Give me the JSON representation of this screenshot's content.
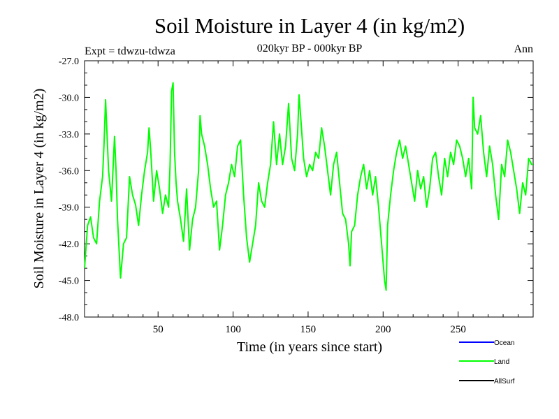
{
  "chart_data": {
    "type": "line",
    "title": "Soil Moisture in Layer 4 (in kg/m2)",
    "subtitle": "020kyr BP - 000kyr BP",
    "experiment_label": "Expt = tdwzu-tdwza",
    "season_label": "Ann",
    "xlabel": "Time (in years since start)",
    "ylabel": "Soil Moisture in Layer 4 (in kg/m2)",
    "xlim": [
      1,
      300
    ],
    "ylim": [
      -48,
      -27
    ],
    "x_ticks": [
      50,
      100,
      150,
      200,
      250
    ],
    "x_tick_labels": [
      "50",
      "100",
      "150",
      "200",
      "250"
    ],
    "y_ticks": [
      -27,
      -30,
      -33,
      -36,
      -39,
      -42,
      -45,
      -48
    ],
    "y_tick_labels": [
      "-27.0",
      "-30.0",
      "-33.0",
      "-36.0",
      "-39.0",
      "-42.0",
      "-45.0",
      "-48.0"
    ],
    "grid": false,
    "legend_position": "bottom-right",
    "legend": [
      {
        "name": "Ocean",
        "color": "#0000ff"
      },
      {
        "name": "Land",
        "color": "#00ff00"
      },
      {
        "name": "AllSurf",
        "color": "#000000"
      }
    ],
    "series": [
      {
        "name": "Land",
        "color": "#00ff00",
        "x": [
          1,
          3,
          5,
          7,
          9,
          11,
          13,
          14,
          15,
          17,
          19,
          21,
          22,
          23,
          25,
          27,
          29,
          31,
          33,
          35,
          37,
          39,
          41,
          43,
          44,
          45,
          47,
          49,
          51,
          53,
          55,
          57,
          58,
          59,
          60,
          61,
          62,
          63,
          65,
          67,
          69,
          71,
          73,
          75,
          77,
          78,
          79,
          81,
          83,
          85,
          87,
          89,
          91,
          93,
          95,
          97,
          99,
          101,
          103,
          105,
          107,
          109,
          111,
          113,
          115,
          117,
          119,
          121,
          123,
          125,
          127,
          129,
          131,
          133,
          135,
          137,
          139,
          141,
          143,
          144,
          145,
          147,
          149,
          151,
          153,
          155,
          157,
          159,
          161,
          163,
          165,
          167,
          169,
          171,
          173,
          175,
          177,
          178,
          179,
          181,
          183,
          185,
          187,
          189,
          191,
          193,
          195,
          197,
          199,
          201,
          202,
          203,
          205,
          207,
          209,
          211,
          213,
          215,
          217,
          219,
          221,
          223,
          225,
          227,
          229,
          231,
          233,
          235,
          237,
          239,
          241,
          243,
          245,
          247,
          249,
          251,
          253,
          255,
          257,
          259,
          260,
          261,
          263,
          265,
          267,
          269,
          271,
          273,
          275,
          277,
          279,
          281,
          283,
          285,
          287,
          289,
          291,
          293,
          295,
          297,
          299,
          300
        ],
        "values": [
          -44.0,
          -40.5,
          -39.8,
          -41.5,
          -42.0,
          -38.5,
          -36.5,
          -33.8,
          -30.2,
          -36.0,
          -38.5,
          -33.2,
          -36.0,
          -40.0,
          -44.8,
          -42.0,
          -41.5,
          -36.5,
          -38.0,
          -38.8,
          -40.5,
          -38.0,
          -36.0,
          -34.5,
          -32.5,
          -34.2,
          -38.5,
          -36.0,
          -37.5,
          -39.5,
          -38.0,
          -39.0,
          -35.5,
          -29.5,
          -28.8,
          -34.5,
          -37.0,
          -38.5,
          -40.0,
          -41.8,
          -37.5,
          -42.5,
          -40.0,
          -39.0,
          -36.0,
          -31.5,
          -33.0,
          -34.0,
          -35.5,
          -37.5,
          -39.0,
          -38.5,
          -42.5,
          -40.5,
          -38.0,
          -37.0,
          -35.5,
          -36.5,
          -34.0,
          -33.5,
          -38.0,
          -41.5,
          -43.5,
          -42.0,
          -40.5,
          -37.0,
          -38.5,
          -39.0,
          -37.0,
          -35.5,
          -32.0,
          -35.5,
          -33.0,
          -35.5,
          -34.0,
          -30.5,
          -35.0,
          -36.0,
          -33.0,
          -29.8,
          -31.5,
          -35.0,
          -36.5,
          -35.5,
          -36.0,
          -34.5,
          -35.0,
          -32.5,
          -34.0,
          -36.0,
          -38.0,
          -35.5,
          -34.5,
          -37.0,
          -39.5,
          -40.0,
          -42.0,
          -43.8,
          -41.0,
          -40.5,
          -38.0,
          -36.5,
          -35.5,
          -37.5,
          -36.0,
          -38.0,
          -36.5,
          -39.0,
          -42.0,
          -45.0,
          -45.8,
          -40.5,
          -38.0,
          -36.0,
          -34.5,
          -33.5,
          -35.0,
          -34.0,
          -35.5,
          -37.0,
          -38.5,
          -36.0,
          -37.5,
          -36.5,
          -39.0,
          -37.5,
          -35.0,
          -34.5,
          -36.5,
          -38.0,
          -35.0,
          -36.5,
          -34.5,
          -35.5,
          -33.5,
          -34.0,
          -35.0,
          -36.5,
          -35.0,
          -37.5,
          -30.0,
          -32.5,
          -33.0,
          -31.5,
          -34.5,
          -36.5,
          -34.0,
          -35.5,
          -38.0,
          -40.0,
          -35.5,
          -36.5,
          -33.5,
          -34.5,
          -36.0,
          -37.5,
          -39.5,
          -37.0,
          -38.0,
          -35.0,
          -35.5,
          -35.5
        ]
      },
      {
        "name": "Ocean",
        "color": "#0000ff",
        "values": []
      },
      {
        "name": "AllSurf",
        "color": "#000000",
        "values": []
      }
    ]
  }
}
